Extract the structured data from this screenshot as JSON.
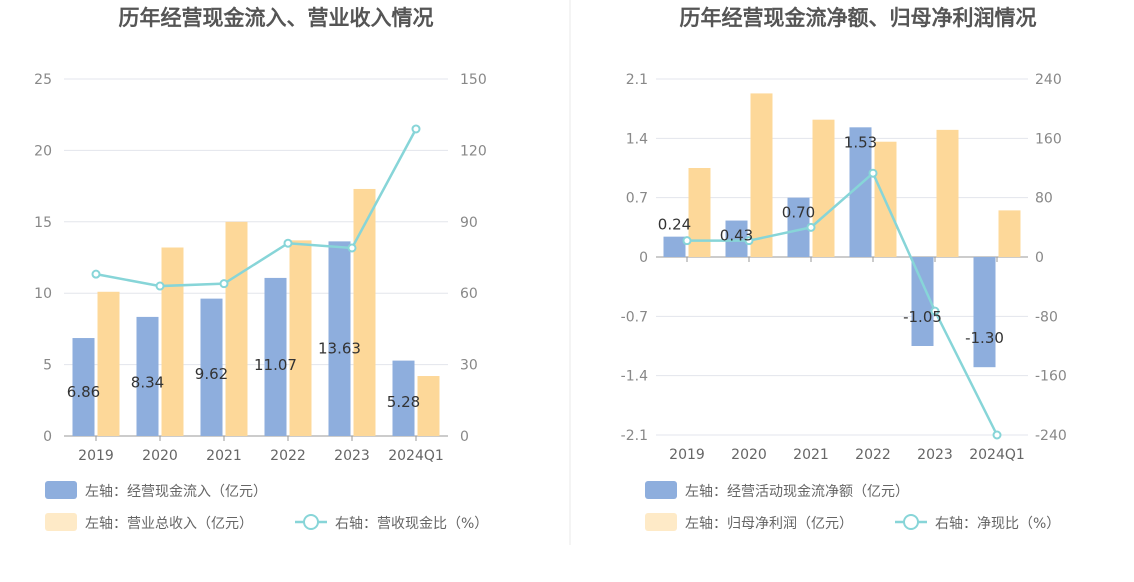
{
  "colors": {
    "bar_primary": "#8eaedd",
    "bar_secondary": "#fdd899",
    "line": "#87d5d8",
    "grid": "#e3e5ec",
    "divider": "#e8e8e8"
  },
  "chart_data": [
    {
      "type": "bar",
      "title": "历年经营现金流入、营业收入情况",
      "categories": [
        "2019",
        "2020",
        "2021",
        "2022",
        "2023",
        "2024Q1"
      ],
      "y_left": {
        "ticks": [
          "0",
          "5",
          "10",
          "15",
          "20",
          "25"
        ],
        "ylim": [
          0,
          25
        ]
      },
      "y_right": {
        "ticks": [
          "0",
          "30",
          "60",
          "90",
          "120",
          "150"
        ],
        "ylim": [
          0,
          150
        ]
      },
      "grid": true,
      "legend_position": "bottom",
      "series": [
        {
          "name": "左轴：经营现金流入（亿元）",
          "axis": "left",
          "kind": "bar",
          "color": "#8eaedd",
          "values": [
            6.86,
            8.34,
            9.62,
            11.07,
            13.63,
            5.28
          ],
          "labels": [
            "6.86",
            "8.34",
            "9.62",
            "11.07",
            "13.63",
            "5.28"
          ]
        },
        {
          "name": "左轴：营业总收入（亿元）",
          "axis": "left",
          "kind": "bar",
          "color": "#fdd899",
          "values": [
            10.1,
            13.2,
            15.0,
            13.7,
            17.3,
            4.2
          ]
        },
        {
          "name": "右轴：营收现金比（%）",
          "axis": "right",
          "kind": "line",
          "color": "#87d5d8",
          "values": [
            68,
            63,
            64,
            81,
            79,
            129
          ]
        }
      ]
    },
    {
      "type": "bar",
      "title": "历年经营现金流净额、归母净利润情况",
      "categories": [
        "2019",
        "2020",
        "2021",
        "2022",
        "2023",
        "2024Q1"
      ],
      "y_left": {
        "ticks": [
          "-2.1",
          "-1.4",
          "-0.7",
          "0",
          "0.7",
          "1.4",
          "2.1"
        ],
        "ylim": [
          -2.1,
          2.1
        ]
      },
      "y_right": {
        "ticks": [
          "-240",
          "-160",
          "-80",
          "0",
          "80",
          "160",
          "240"
        ],
        "ylim": [
          -240,
          240
        ]
      },
      "grid": true,
      "legend_position": "bottom",
      "series": [
        {
          "name": "左轴：经营活动现金流净额（亿元）",
          "axis": "left",
          "kind": "bar",
          "color": "#8eaedd",
          "values": [
            0.24,
            0.43,
            0.7,
            1.53,
            -1.05,
            -1.3
          ],
          "labels": [
            "0.24",
            "0.43",
            "0.70",
            "1.53",
            "-1.05",
            "-1.30"
          ]
        },
        {
          "name": "左轴：归母净利润（亿元）",
          "axis": "left",
          "kind": "bar",
          "color": "#fdd899",
          "values": [
            1.05,
            1.93,
            1.62,
            1.36,
            1.5,
            0.55
          ]
        },
        {
          "name": "右轴：净现比（%）",
          "axis": "right",
          "kind": "line",
          "color": "#87d5d8",
          "values": [
            22,
            22,
            40,
            113,
            -73,
            -240
          ]
        }
      ]
    }
  ]
}
